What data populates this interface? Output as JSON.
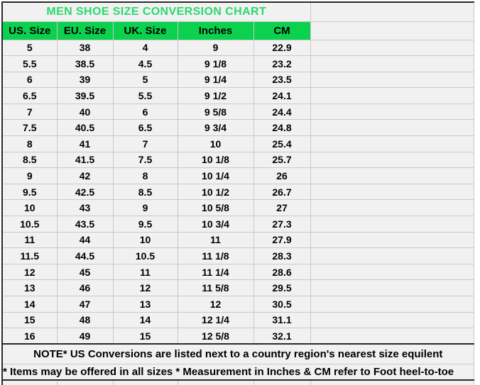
{
  "colors": {
    "header_fill": "#0cd14e",
    "title_text": "#29d96e",
    "cell_fill": "#f2f1f1",
    "gridline": "#c9c9c9",
    "dark_border": "#2a2a2a"
  },
  "chart_data": {
    "type": "table",
    "title": "MEN SHOE SIZE CONVERSION CHART",
    "columns": [
      "US. Size",
      "EU. Size",
      "UK. Size",
      "Inches",
      "CM"
    ],
    "rows": [
      [
        "5",
        "38",
        "4",
        "9",
        "22.9"
      ],
      [
        "5.5",
        "38.5",
        "4.5",
        "9 1/8",
        "23.2"
      ],
      [
        "6",
        "39",
        "5",
        "9 1/4",
        "23.5"
      ],
      [
        "6.5",
        "39.5",
        "5.5",
        "9 1/2",
        "24.1"
      ],
      [
        "7",
        "40",
        "6",
        "9 5/8",
        "24.4"
      ],
      [
        "7.5",
        "40.5",
        "6.5",
        "9 3/4",
        "24.8"
      ],
      [
        "8",
        "41",
        "7",
        "10",
        "25.4"
      ],
      [
        "8.5",
        "41.5",
        "7.5",
        "10 1/8",
        "25.7"
      ],
      [
        "9",
        "42",
        "8",
        "10 1/4",
        "26"
      ],
      [
        "9.5",
        "42.5",
        "8.5",
        "10 1/2",
        "26.7"
      ],
      [
        "10",
        "43",
        "9",
        "10 5/8",
        "27"
      ],
      [
        "10.5",
        "43.5",
        "9.5",
        "10 3/4",
        "27.3"
      ],
      [
        "11",
        "44",
        "10",
        "11",
        "27.9"
      ],
      [
        "11.5",
        "44.5",
        "10.5",
        "11 1/8",
        "28.3"
      ],
      [
        "12",
        "45",
        "11",
        "11 1/4",
        "28.6"
      ],
      [
        "13",
        "46",
        "12",
        "11 5/8",
        "29.5"
      ],
      [
        "14",
        "47",
        "13",
        "12",
        "30.5"
      ],
      [
        "15",
        "48",
        "14",
        "12 1/4",
        "31.1"
      ],
      [
        "16",
        "49",
        "15",
        "12 5/8",
        "32.1"
      ]
    ],
    "notes": [
      "NOTE* US Conversions are listed next to a country region's nearest size equilent",
      "* Items may be offered in all sizes * Measurement in Inches & CM refer to Foot heel-to-toe"
    ]
  }
}
